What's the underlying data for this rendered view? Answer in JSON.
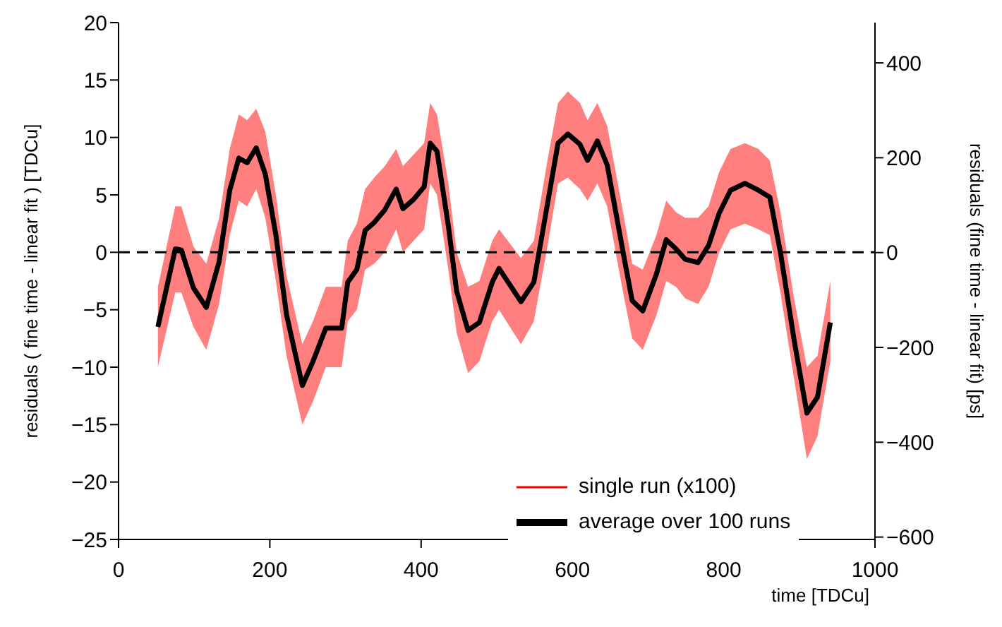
{
  "chart_data": {
    "type": "line",
    "xlabel": "time [TDCu]",
    "ylabel": "residuals ( fine time - linear fit ) [TDCu]",
    "y2label": "residuals (fine time - linear fit) [ps]",
    "x": [
      52,
      75,
      83,
      99,
      116,
      133,
      147,
      159,
      170,
      182,
      194,
      208,
      222,
      243,
      257,
      274,
      295,
      303,
      315,
      326,
      338,
      352,
      367,
      376,
      390,
      404,
      412,
      421,
      436,
      447,
      462,
      477,
      494,
      503,
      532,
      549,
      567,
      581,
      594,
      610,
      620,
      633,
      646,
      667,
      679,
      693,
      711,
      724,
      737,
      749,
      766,
      780,
      794,
      809,
      828,
      846,
      861,
      875,
      893,
      910,
      924,
      941
    ],
    "series": [
      {
        "name": "single run (x100)",
        "color": "#ff0000",
        "values": [
          null,
          null,
          null,
          null,
          null,
          null,
          null,
          null,
          null,
          null,
          null,
          null,
          null,
          null,
          null,
          null,
          null,
          null,
          null,
          null,
          null,
          null,
          null,
          null,
          null,
          null,
          null,
          null,
          null,
          null,
          null,
          null,
          null,
          null,
          null,
          null,
          null,
          null,
          null,
          null,
          null,
          null,
          null,
          null,
          null,
          null,
          null,
          null,
          null,
          null,
          null,
          null,
          null,
          null,
          null,
          null,
          null,
          null,
          null,
          null,
          null,
          null
        ],
        "lower": [
          -10,
          -3.5,
          -3.5,
          -6.5,
          -8.5,
          -4.5,
          1.5,
          4.5,
          4,
          5.5,
          3,
          -2.5,
          -9,
          -15,
          -13,
          -10,
          -10,
          -6,
          -5,
          -1.5,
          -1,
          0,
          2,
          0,
          1,
          2,
          6,
          5,
          -1.5,
          -7,
          -10.5,
          -9.5,
          -6,
          -5,
          -8,
          -6,
          0.5,
          6,
          6.5,
          5.5,
          4.5,
          6,
          4,
          -3.5,
          -7.5,
          -8.5,
          -5.5,
          -2.5,
          -3,
          -4,
          -4.5,
          -3,
          0,
          2,
          2.5,
          2,
          1.5,
          -3.5,
          -11,
          -18,
          -16,
          -9.5
        ],
        "upper": [
          -3,
          4,
          4,
          0.5,
          -1,
          3,
          9,
          12,
          11.5,
          12.5,
          10.5,
          5,
          -2,
          -8,
          -6,
          -3,
          -3,
          1,
          2.5,
          5.5,
          6.5,
          7.5,
          9,
          7.5,
          8.5,
          9.5,
          13,
          12,
          6,
          0,
          -3,
          -2.5,
          1,
          2,
          -0.5,
          1,
          8,
          13,
          14,
          13,
          11.5,
          13,
          11,
          3.5,
          -1,
          -1.5,
          1.5,
          4.5,
          3.5,
          3,
          3,
          4,
          7,
          9,
          9.5,
          9,
          8,
          3.5,
          -4,
          -10,
          -9,
          -2.5
        ]
      },
      {
        "name": "average over 100 runs",
        "color": "#000000",
        "values": [
          -6.5,
          0.3,
          0.2,
          -3.1,
          -4.8,
          -0.8,
          5.4,
          8.2,
          7.8,
          9.1,
          6.8,
          1.5,
          -5.4,
          -11.6,
          -9.5,
          -6.6,
          -6.6,
          -2.6,
          -1.5,
          1.9,
          2.6,
          3.7,
          5.5,
          3.8,
          4.6,
          5.7,
          9.5,
          8.8,
          2.3,
          -3.4,
          -6.8,
          -6.1,
          -2.6,
          -1.4,
          -4.3,
          -2.6,
          4.2,
          9.5,
          10.3,
          9.4,
          8,
          9.7,
          7.6,
          0,
          -4.2,
          -5.1,
          -1.9,
          1.1,
          0.3,
          -0.6,
          -0.9,
          0.6,
          3.4,
          5.4,
          6,
          5.4,
          4.8,
          0,
          -7.6,
          -14,
          -12.6,
          -6.1
        ]
      }
    ],
    "xlim": [
      0,
      1000
    ],
    "xticks": [
      0,
      200,
      400,
      600,
      800,
      1000
    ],
    "ylim": [
      -25,
      20
    ],
    "yticks": [
      -25,
      -20,
      -15,
      -10,
      -5,
      0,
      5,
      10,
      15,
      20
    ],
    "y2lim": [
      -605,
      485
    ],
    "y2ticks": [
      -600,
      -400,
      -200,
      0,
      200,
      400
    ],
    "ref_lines": [
      {
        "axis": "y",
        "value": 0,
        "color": "#000000",
        "line_style": "dashed"
      }
    ],
    "legend": "bottom right",
    "line_style": "solid",
    "marker": "none",
    "grid": false
  }
}
